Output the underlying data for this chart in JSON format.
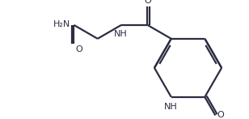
{
  "bg_color": "#ffffff",
  "line_color": "#2b2d42",
  "bond_lw": 1.6,
  "font_size": 8.0,
  "figsize": [
    3.08,
    1.47
  ],
  "dpi": 100,
  "xlim": [
    0,
    10.0
  ],
  "ylim": [
    0,
    4.77
  ]
}
